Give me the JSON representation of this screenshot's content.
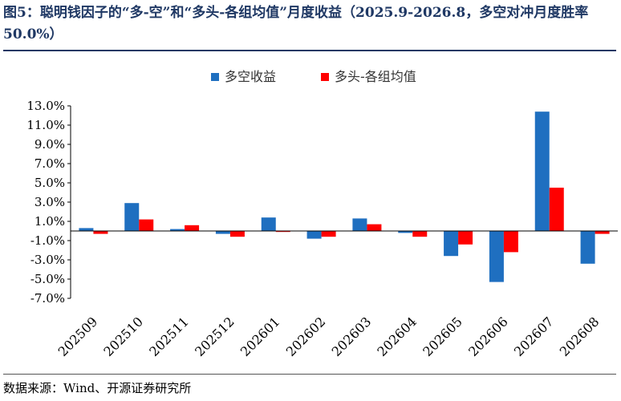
{
  "header": {
    "title": "图5：聪明钱因子的“多-空”和“多头-各组均值”月度收益（2025.9-2026.8，多空对冲月度胜率 50.0%）"
  },
  "footer": {
    "source": "数据来源：Wind、开源证券研究所"
  },
  "colors": {
    "series1": "#1f6fc0",
    "series2": "#ff0000",
    "title": "#1f3864"
  },
  "chart_data": {
    "type": "bar",
    "categories": [
      "202509",
      "202510",
      "202511",
      "202512",
      "202601",
      "202602",
      "202603",
      "202604",
      "202605",
      "202606",
      "202607",
      "202608"
    ],
    "series": [
      {
        "name": "多空收益",
        "color": "#1f6fc0",
        "values": [
          0.3,
          2.9,
          0.2,
          -0.3,
          1.4,
          -0.8,
          1.3,
          -0.2,
          -2.6,
          -5.3,
          12.4,
          -3.4
        ]
      },
      {
        "name": "多头-各组均值",
        "color": "#ff0000",
        "values": [
          -0.3,
          1.2,
          0.6,
          -0.6,
          -0.1,
          -0.6,
          0.7,
          -0.6,
          -1.4,
          -2.2,
          4.5,
          -0.3
        ]
      }
    ],
    "y_ticks": [
      "13.0%",
      "11.0%",
      "9.0%",
      "7.0%",
      "5.0%",
      "3.0%",
      "1.0%",
      "-1.0%",
      "-3.0%",
      "-5.0%",
      "-7.0%"
    ],
    "ylim": [
      -7,
      13
    ],
    "grid": false,
    "legend_position": "top-center"
  }
}
